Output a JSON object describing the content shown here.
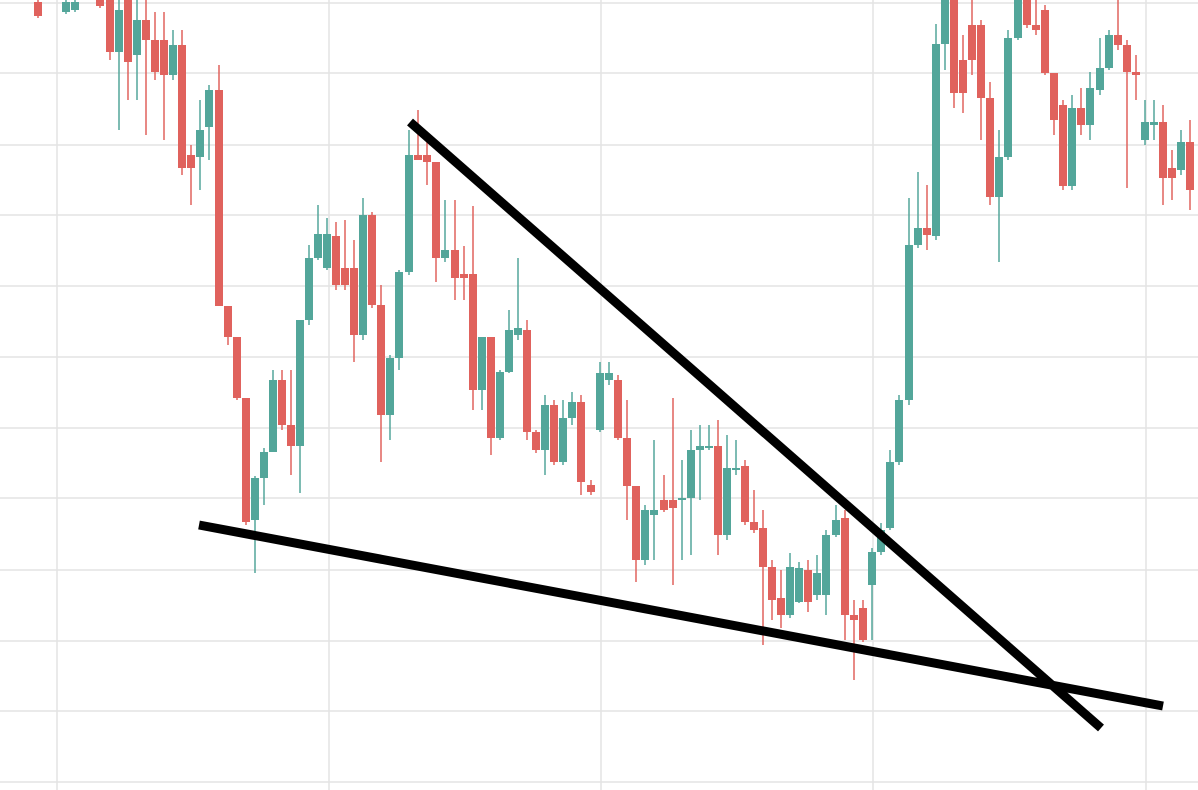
{
  "chart_data": {
    "type": "candlestick",
    "x": [
      38,
      66,
      75,
      100,
      110,
      119,
      128,
      137,
      146,
      155,
      164,
      173,
      182,
      191,
      200,
      209,
      219,
      228,
      237,
      246,
      255,
      264,
      273,
      282,
      291,
      300,
      309,
      318,
      327,
      336,
      345,
      354,
      363,
      372,
      381,
      390,
      399,
      409,
      418,
      427,
      436,
      445,
      455,
      464,
      473,
      482,
      491,
      500,
      509,
      518,
      527,
      536,
      545,
      554,
      563,
      572,
      581,
      591,
      600,
      609,
      618,
      627,
      636,
      645,
      654,
      664,
      673,
      682,
      691,
      700,
      709,
      718,
      727,
      736,
      745,
      754,
      763,
      772,
      781,
      790,
      799,
      808,
      817,
      826,
      836,
      845,
      854,
      863,
      872,
      881,
      890,
      899,
      909,
      918,
      927,
      936,
      945,
      954,
      963,
      972,
      981,
      990,
      999,
      1008,
      1018,
      1027,
      1036,
      1045,
      1054,
      1063,
      1072,
      1081,
      1090,
      1100,
      1109,
      1118,
      1127,
      1136,
      1145,
      1154,
      1163,
      1172,
      1181,
      1190
    ],
    "open": [
      788,
      778,
      780,
      790,
      790,
      738,
      790,
      735,
      770,
      750,
      750,
      715,
      745,
      635,
      633,
      663,
      700,
      484,
      453,
      392,
      270,
      312,
      338,
      410,
      365,
      344,
      470,
      532,
      522,
      554,
      522,
      522,
      455,
      575,
      485,
      375,
      432,
      518,
      635,
      635,
      628,
      532,
      540,
      516,
      516,
      400,
      453,
      352,
      418,
      455,
      460,
      358,
      340,
      385,
      328,
      372,
      388,
      305,
      360,
      410,
      410,
      352,
      304,
      230,
      275,
      290,
      290,
      290,
      292,
      340,
      342,
      344,
      255,
      320,
      324,
      268,
      262,
      223,
      192,
      175,
      188,
      220,
      195,
      195,
      255,
      272,
      175,
      182,
      205,
      238,
      262,
      328,
      390,
      545,
      562,
      554,
      746,
      790,
      730,
      765,
      765,
      692,
      593,
      633,
      752,
      790,
      765,
      780,
      717,
      685,
      604,
      682,
      665,
      700,
      722,
      755,
      745,
      718,
      650,
      665,
      668,
      622,
      620,
      648
    ],
    "high": [
      790,
      790,
      790,
      790,
      790,
      790,
      790,
      790,
      790,
      778,
      778,
      760,
      760,
      645,
      690,
      705,
      725,
      484,
      453,
      392,
      314,
      342,
      420,
      420,
      420,
      470,
      545,
      585,
      572,
      568,
      570,
      550,
      592,
      578,
      505,
      435,
      520,
      660,
      680,
      650,
      628,
      590,
      590,
      544,
      584,
      453,
      453,
      420,
      480,
      532,
      470,
      360,
      395,
      390,
      390,
      398,
      395,
      310,
      428,
      428,
      415,
      390,
      304,
      285,
      350,
      315,
      392,
      330,
      360,
      365,
      365,
      370,
      355,
      350,
      330,
      300,
      280,
      230,
      220,
      237,
      228,
      230,
      235,
      260,
      285,
      280,
      190,
      190,
      242,
      267,
      340,
      395,
      592,
      618,
      605,
      766,
      790,
      790,
      755,
      790,
      770,
      708,
      660,
      760,
      790,
      790,
      790,
      785,
      717,
      690,
      695,
      702,
      718,
      752,
      760,
      790,
      750,
      735,
      690,
      690,
      685,
      640,
      660,
      670
    ],
    "low": [
      772,
      776,
      778,
      782,
      730,
      660,
      690,
      690,
      655,
      710,
      650,
      710,
      615,
      585,
      600,
      630,
      484,
      445,
      390,
      265,
      217,
      285,
      338,
      360,
      315,
      297,
      465,
      530,
      520,
      500,
      500,
      428,
      450,
      482,
      328,
      350,
      420,
      515,
      630,
      605,
      508,
      528,
      490,
      490,
      380,
      380,
      335,
      350,
      417,
      450,
      350,
      337,
      315,
      325,
      325,
      365,
      295,
      295,
      358,
      405,
      350,
      270,
      208,
      225,
      230,
      278,
      205,
      230,
      235,
      290,
      340,
      235,
      250,
      315,
      265,
      257,
      145,
      170,
      162,
      172,
      187,
      178,
      190,
      175,
      253,
      150,
      110,
      148,
      150,
      235,
      260,
      325,
      385,
      542,
      540,
      550,
      720,
      682,
      677,
      715,
      650,
      585,
      528,
      630,
      750,
      762,
      755,
      715,
      655,
      600,
      600,
      655,
      650,
      695,
      720,
      740,
      602,
      690,
      645,
      650,
      585,
      590,
      615,
      580
    ],
    "close": [
      774,
      788,
      788,
      784,
      738,
      780,
      728,
      770,
      750,
      718,
      715,
      745,
      622,
      622,
      660,
      700,
      484,
      453,
      392,
      268,
      312,
      338,
      410,
      365,
      344,
      470,
      532,
      556,
      556,
      505,
      505,
      455,
      575,
      485,
      375,
      432,
      518,
      635,
      630,
      628,
      532,
      540,
      512,
      512,
      400,
      453,
      352,
      418,
      460,
      462,
      358,
      340,
      385,
      328,
      372,
      388,
      308,
      298,
      417,
      417,
      352,
      304,
      230,
      280,
      280,
      280,
      282,
      292,
      340,
      344,
      344,
      255,
      322,
      322,
      268,
      260,
      223,
      190,
      175,
      223,
      222,
      188,
      217,
      255,
      270,
      175,
      170,
      150,
      238,
      260,
      328,
      390,
      545,
      562,
      555,
      746,
      790,
      697,
      697,
      730,
      692,
      593,
      633,
      752,
      790,
      765,
      760,
      717,
      670,
      604,
      682,
      665,
      702,
      722,
      755,
      745,
      718,
      715,
      668,
      668,
      612,
      612,
      648,
      600
    ],
    "up_color": "#53a69a",
    "down_color": "#e0625d",
    "xlim": [
      0,
      1198
    ],
    "ylim": [
      0,
      790
    ],
    "xticks": [
      57,
      329,
      601,
      873,
      1146
    ],
    "yticks": [
      8,
      79,
      149,
      220,
      292,
      362,
      433,
      504,
      575,
      645,
      717,
      787
    ],
    "grid": true,
    "trendlines": [
      {
        "x": [
          410,
          1101
        ],
        "y": [
          668,
          62
        ],
        "color": "#000000"
      },
      {
        "x": [
          199,
          1163
        ],
        "y": [
          265,
          84
        ],
        "color": "#000000"
      }
    ]
  }
}
